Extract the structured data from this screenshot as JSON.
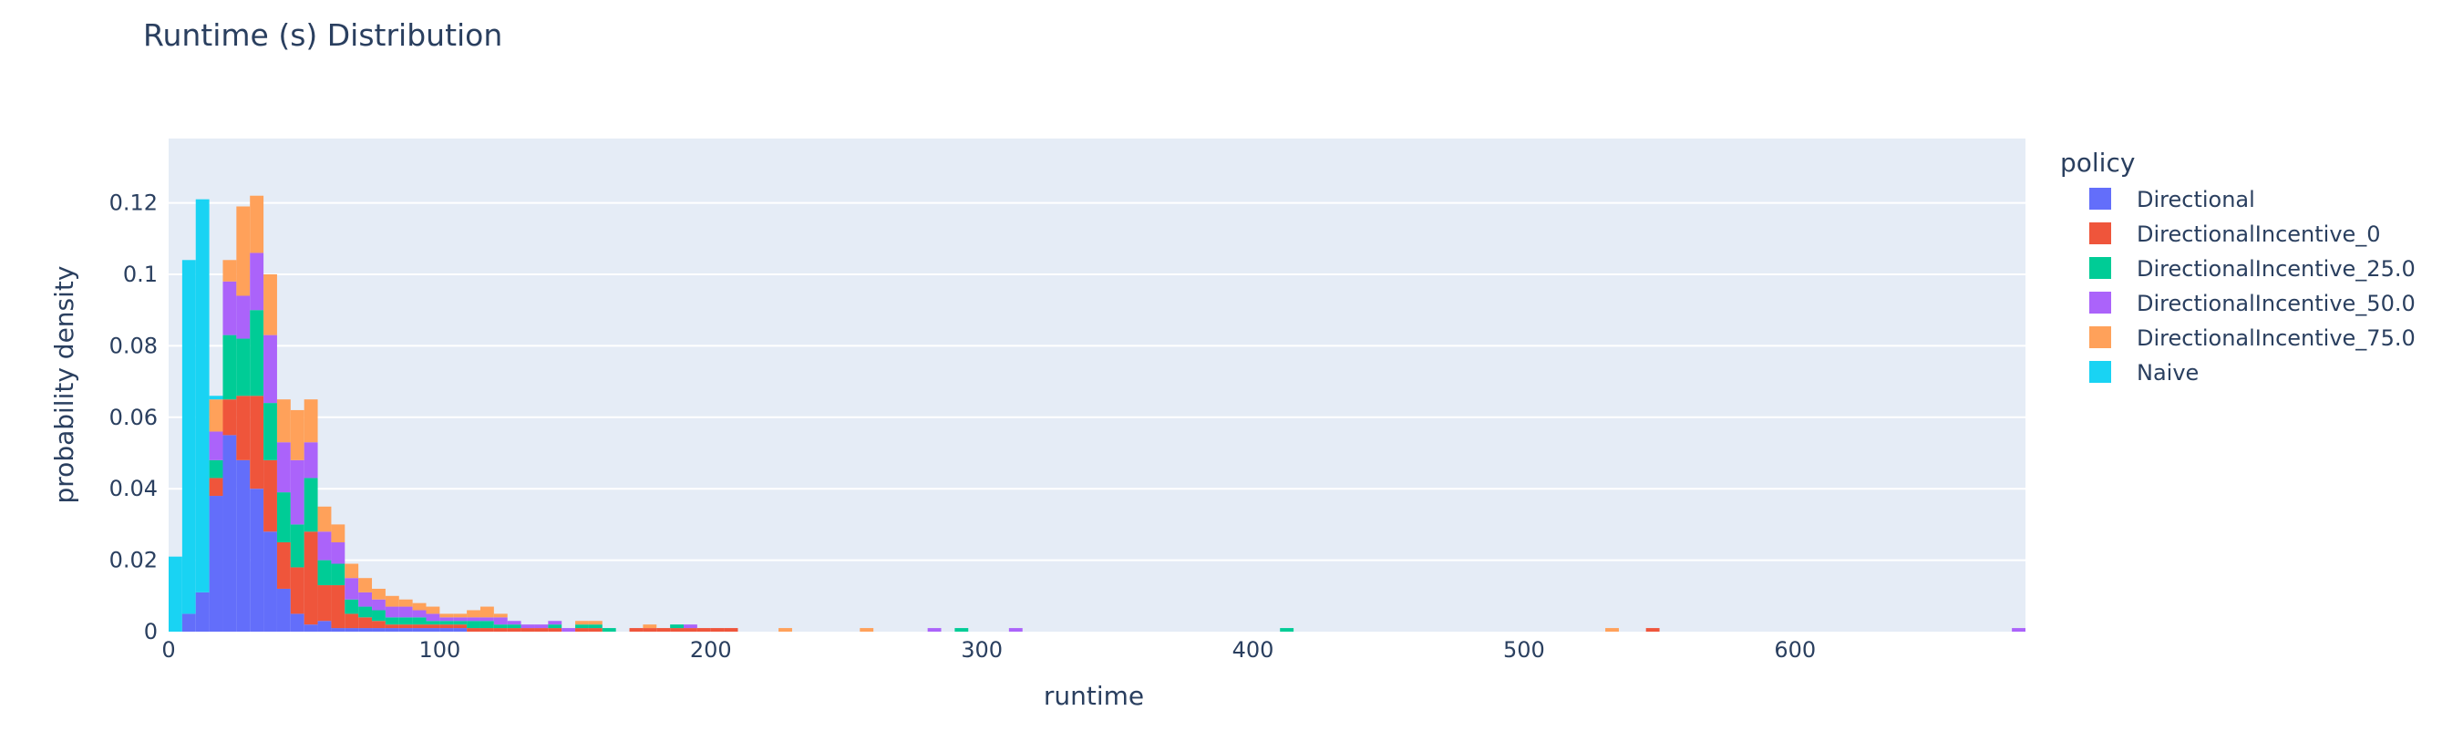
{
  "chart_data": {
    "type": "bar",
    "title": "Runtime (s) Distribution",
    "xlabel": "runtime",
    "ylabel": "probability density",
    "xlim": [
      0,
      685
    ],
    "ylim": [
      0,
      0.138
    ],
    "bin_width": 5,
    "stacked": true,
    "grid": true,
    "legend_position": "right",
    "x_ticks": [
      0,
      100,
      200,
      300,
      400,
      500,
      600
    ],
    "y_ticks": [
      0,
      0.02,
      0.04,
      0.06,
      0.08,
      0.1,
      0.12
    ],
    "y_tick_labels": [
      "0",
      "0.02",
      "0.04",
      "0.06",
      "0.08",
      "0.1",
      "0.12"
    ],
    "legend_title": "policy",
    "bin_starts": [
      0,
      5,
      10,
      15,
      20,
      25,
      30,
      35,
      40,
      45,
      50,
      55,
      60,
      65,
      70,
      75,
      80,
      85,
      90,
      95,
      100,
      105,
      110,
      115,
      120,
      125,
      130,
      135,
      140,
      145,
      150,
      155,
      160,
      165,
      170,
      175,
      180,
      185,
      190,
      195,
      200,
      205,
      225,
      255,
      280,
      290,
      310,
      410,
      530,
      545,
      680
    ],
    "series": [
      {
        "name": "Directional",
        "color": "#636efa",
        "values": [
          0,
          0.005,
          0.011,
          0.038,
          0.055,
          0.048,
          0.04,
          0.028,
          0.012,
          0.005,
          0.002,
          0.003,
          0.001,
          0.001,
          0.001,
          0.001,
          0.001,
          0.001,
          0.001,
          0.001,
          0.001,
          0.001,
          0,
          0,
          0,
          0,
          0,
          0,
          0,
          0,
          0,
          0,
          0,
          0,
          0,
          0,
          0,
          0,
          0,
          0,
          0,
          0,
          0,
          0,
          0,
          0,
          0,
          0,
          0,
          0,
          0
        ]
      },
      {
        "name": "DirectionalIncentive_0",
        "color": "#ef553b",
        "values": [
          0,
          0,
          0,
          0.005,
          0.01,
          0.018,
          0.026,
          0.02,
          0.013,
          0.013,
          0.026,
          0.01,
          0.012,
          0.004,
          0.003,
          0.002,
          0.001,
          0.001,
          0.001,
          0.001,
          0.001,
          0.001,
          0.001,
          0.001,
          0.001,
          0.001,
          0.001,
          0.001,
          0.001,
          0,
          0.001,
          0.001,
          0,
          0,
          0.001,
          0.001,
          0.001,
          0.001,
          0.001,
          0.001,
          0.001,
          0.001,
          0,
          0,
          0,
          0,
          0,
          0,
          0,
          0.001,
          0
        ]
      },
      {
        "name": "DirectionalIncentive_25.0",
        "color": "#00cc96",
        "values": [
          0,
          0,
          0,
          0.005,
          0.018,
          0.016,
          0.024,
          0.016,
          0.014,
          0.012,
          0.015,
          0.007,
          0.006,
          0.004,
          0.003,
          0.003,
          0.002,
          0.002,
          0.002,
          0.001,
          0.001,
          0.001,
          0.002,
          0.002,
          0.001,
          0.001,
          0,
          0,
          0.001,
          0,
          0.001,
          0.001,
          0.001,
          0,
          0,
          0,
          0,
          0.001,
          0,
          0,
          0,
          0,
          0,
          0,
          0,
          0.001,
          0,
          0.001,
          0,
          0,
          0
        ]
      },
      {
        "name": "DirectionalIncentive_50.0",
        "color": "#ab63fa",
        "values": [
          0,
          0,
          0,
          0.008,
          0.015,
          0.012,
          0.016,
          0.019,
          0.014,
          0.018,
          0.01,
          0.008,
          0.006,
          0.006,
          0.004,
          0.003,
          0.003,
          0.003,
          0.002,
          0.002,
          0.001,
          0.001,
          0.001,
          0.001,
          0.002,
          0.001,
          0.001,
          0.001,
          0.001,
          0.001,
          0,
          0,
          0,
          0,
          0,
          0,
          0,
          0,
          0.001,
          0,
          0,
          0,
          0,
          0,
          0.001,
          0,
          0.001,
          0,
          0,
          0,
          0.001
        ]
      },
      {
        "name": "DirectionalIncentive_75.0",
        "color": "#ffa15a",
        "values": [
          0,
          0,
          0,
          0.009,
          0.006,
          0.025,
          0.016,
          0.017,
          0.012,
          0.014,
          0.012,
          0.007,
          0.005,
          0.004,
          0.004,
          0.003,
          0.003,
          0.002,
          0.002,
          0.002,
          0.001,
          0.001,
          0.002,
          0.003,
          0.001,
          0,
          0,
          0,
          0,
          0,
          0.001,
          0.001,
          0,
          0,
          0,
          0.001,
          0,
          0,
          0,
          0,
          0,
          0,
          0.001,
          0.001,
          0,
          0,
          0,
          0,
          0.001,
          0,
          0
        ]
      },
      {
        "name": "Naive",
        "color": "#19d3f3",
        "values": [
          0.021,
          0.099,
          0.11,
          0.001,
          0,
          0,
          0,
          0,
          0,
          0,
          0,
          0,
          0,
          0,
          0,
          0,
          0,
          0,
          0,
          0,
          0,
          0,
          0,
          0,
          0,
          0,
          0,
          0,
          0,
          0,
          0,
          0,
          0,
          0,
          0,
          0,
          0,
          0,
          0,
          0,
          0,
          0,
          0,
          0,
          0,
          0,
          0,
          0,
          0,
          0,
          0
        ]
      }
    ]
  }
}
